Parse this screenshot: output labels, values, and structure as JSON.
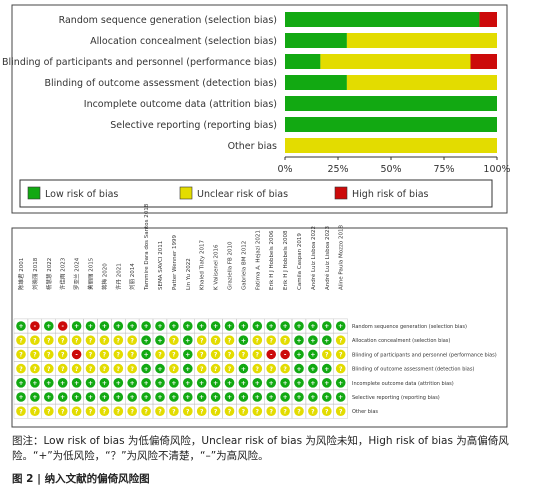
{
  "chart_data": [
    {
      "type": "stacked-barh",
      "categories": [
        "Random sequence generation (selection bias)",
        "Allocation concealment (selection bias)",
        "Blinding of participants and personnel (performance bias)",
        "Blinding of outcome assessment (detection bias)",
        "Incomplete outcome data (attrition bias)",
        "Selective reporting (reporting bias)",
        "Other bias"
      ],
      "series": [
        {
          "name": "Low risk of bias",
          "color": "#12a912",
          "values": [
            91.7,
            29.2,
            16.7,
            29.2,
            100,
            100,
            0
          ]
        },
        {
          "name": "Unclear risk of bias",
          "color": "#e3dc00",
          "values": [
            0,
            70.8,
            70.8,
            70.8,
            0,
            0,
            100
          ]
        },
        {
          "name": "High risk of bias",
          "color": "#cc0a0a",
          "values": [
            8.3,
            0,
            12.5,
            0,
            0,
            0,
            0
          ]
        }
      ],
      "xlim": [
        0,
        100
      ],
      "xticks": [
        {
          "value": 0,
          "label": "0%"
        },
        {
          "value": 25,
          "label": "25%"
        },
        {
          "value": 50,
          "label": "50%"
        },
        {
          "value": 75,
          "label": "75%"
        },
        {
          "value": 100,
          "label": "100%"
        }
      ],
      "legend": "bottom"
    },
    {
      "type": "rob-summary",
      "studies": [
        "陈雄君 2001",
        "刘晓丽 2018",
        "杨慧慧 2022",
        "许佳雨 2023",
        "罗亚兰 2024",
        "黄丽丽 2015",
        "蒋梅 2020",
        "许丹 2021",
        "刘丽 2014",
        "Tammire Dara dos Santos 2018",
        "SEMA SAVCI 2011",
        "Patter Wenner 1999",
        "Lin Yu 2022",
        "Khaled Tlaty 2017",
        "K Valisenel 2016",
        "Graziella FB 2010",
        "Gabriela BM 2012",
        "Fatima A. Hejazi 2021",
        "Erik H J Hobbels 2006",
        "Erik H J Hobbels 2008",
        "Camila Caspan 2019",
        "André Luiz Lisboa 2022",
        "André Luiz Lisboa 2023",
        "Aline Paula Mozzo 2018"
      ],
      "domains": [
        "Random sequence generation (selection bias)",
        "Allocation concealment (selection bias)",
        "Blinding of participants and personnel (performance bias)",
        "Blinding of outcome assessment (detection bias)",
        "Incomplete outcome data (attrition bias)",
        "Selective reporting (reporting bias)",
        "Other bias"
      ],
      "symbols": [
        "+",
        "?",
        "-"
      ],
      "symbol_colors": [
        "#12a912",
        "#e3dc00",
        "#cc0a0a"
      ],
      "judgments": [
        [
          "+",
          "-",
          "+",
          "-",
          "+",
          "+",
          "+",
          "+",
          "+",
          "+",
          "+",
          "+",
          "+",
          "+",
          "+",
          "+",
          "+",
          "+",
          "+",
          "+",
          "+",
          "+",
          "+",
          "+"
        ],
        [
          "?",
          "?",
          "?",
          "?",
          "?",
          "?",
          "?",
          "?",
          "?",
          "+",
          "+",
          "?",
          "+",
          "?",
          "?",
          "?",
          "+",
          "?",
          "?",
          "?",
          "+",
          "+",
          "+",
          "?"
        ],
        [
          "?",
          "?",
          "?",
          "?",
          "-",
          "?",
          "?",
          "?",
          "?",
          "+",
          "?",
          "?",
          "+",
          "?",
          "?",
          "?",
          "?",
          "?",
          "-",
          "-",
          "+",
          "+",
          "?",
          "?"
        ],
        [
          "?",
          "?",
          "?",
          "?",
          "?",
          "?",
          "?",
          "?",
          "?",
          "+",
          "+",
          "?",
          "+",
          "?",
          "?",
          "?",
          "+",
          "?",
          "?",
          "?",
          "+",
          "+",
          "+",
          "?"
        ],
        [
          "+",
          "+",
          "+",
          "+",
          "+",
          "+",
          "+",
          "+",
          "+",
          "+",
          "+",
          "+",
          "+",
          "+",
          "+",
          "+",
          "+",
          "+",
          "+",
          "+",
          "+",
          "+",
          "+",
          "+"
        ],
        [
          "+",
          "+",
          "+",
          "+",
          "+",
          "+",
          "+",
          "+",
          "+",
          "+",
          "+",
          "+",
          "+",
          "+",
          "+",
          "+",
          "+",
          "+",
          "+",
          "+",
          "+",
          "+",
          "+",
          "+"
        ],
        [
          "?",
          "?",
          "?",
          "?",
          "?",
          "?",
          "?",
          "?",
          "?",
          "?",
          "?",
          "?",
          "?",
          "?",
          "?",
          "?",
          "?",
          "?",
          "?",
          "?",
          "?",
          "?",
          "?",
          "?"
        ]
      ]
    }
  ],
  "caption": "图注：Low risk of bias 为低偏倚风险，Unclear risk of bias 为风险未知，High risk of bias 为高偏倚风险。“+”为低风险，“？”为风险不清楚，“–”为高风险。",
  "figure_title": "图 2 | 纳入文献的偏倚风险图"
}
